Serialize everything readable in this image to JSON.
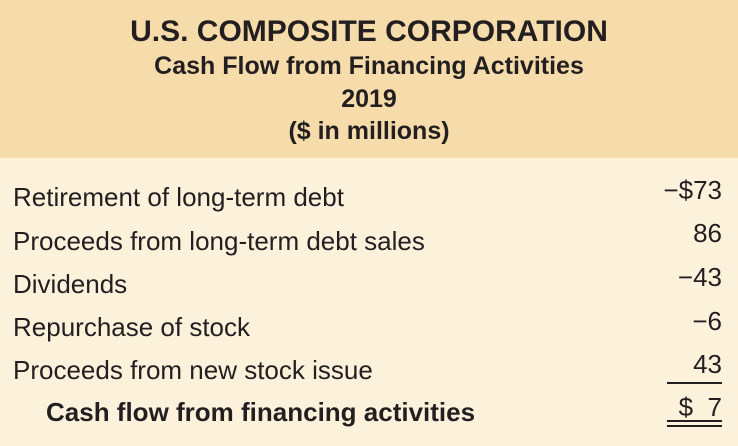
{
  "header": {
    "company": "U.S. COMPOSITE CORPORATION",
    "statement": "Cash Flow from Financing Activities",
    "year": "2019",
    "units": "($ in millions)"
  },
  "rows": [
    {
      "label": "Retirement of long-term debt",
      "amount": "−$73"
    },
    {
      "label": "Proceeds from long-term debt sales",
      "amount": "86"
    },
    {
      "label": "Dividends",
      "amount": "−43"
    },
    {
      "label": "Repurchase of stock",
      "amount": "−6"
    },
    {
      "label": "Proceeds from new stock issue",
      "amount": "43"
    }
  ],
  "total": {
    "label": "Cash flow from financing activities",
    "amount": "$  7"
  },
  "colors": {
    "header_background": "#f6dcaa",
    "body_background": "#fcf2dc",
    "text": "#231f20"
  }
}
